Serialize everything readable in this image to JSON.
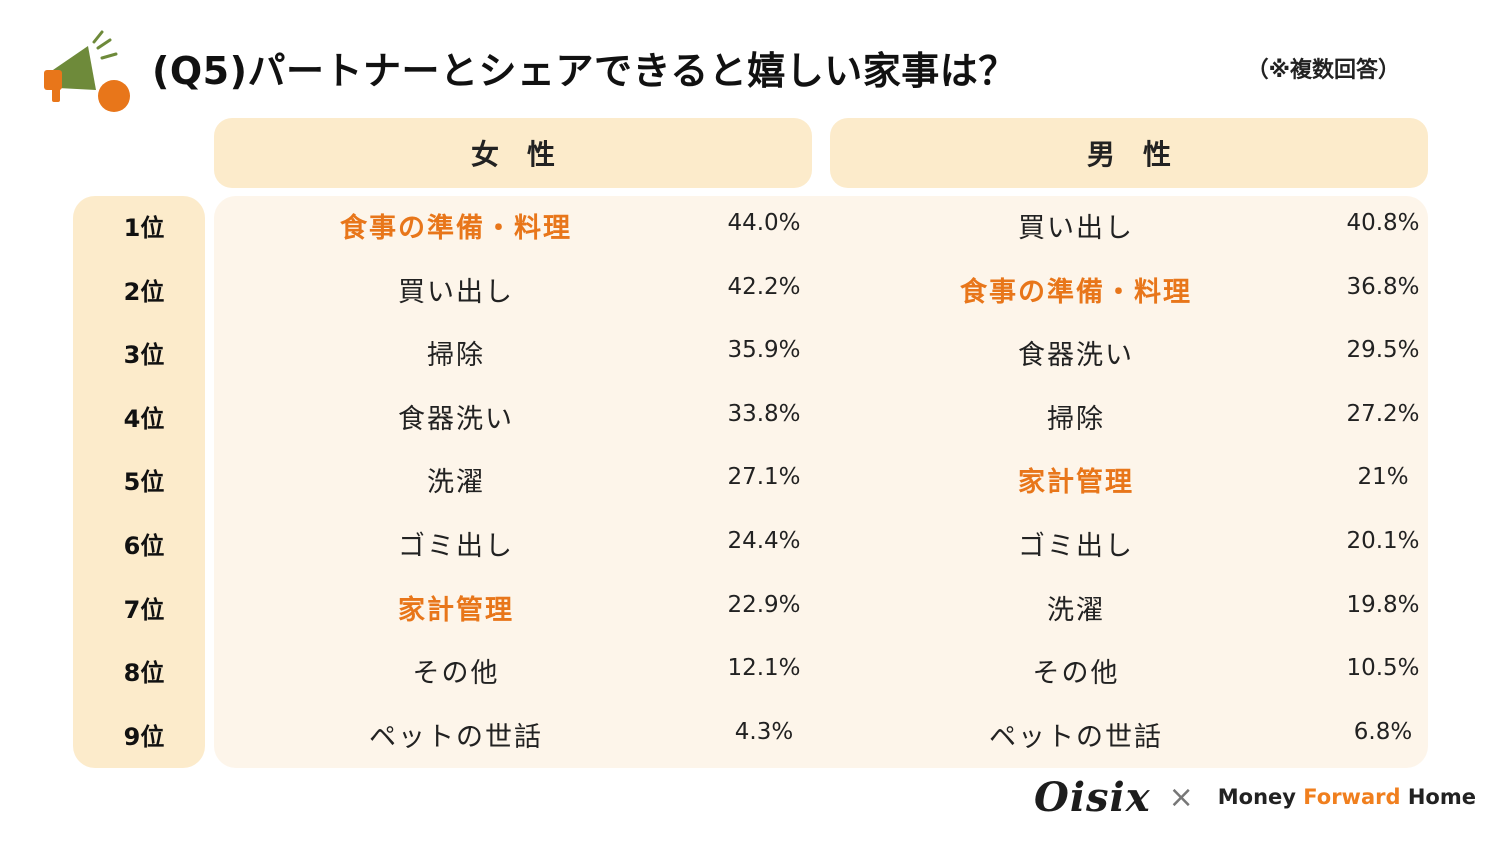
{
  "header": {
    "title": "(Q5)パートナーとシェアできると嬉しい家事は？",
    "note": "（※複数回答）"
  },
  "columns": {
    "female": "女性",
    "male": "男性"
  },
  "colors": {
    "highlight": "#e8761a",
    "header_bg": "#fcebcb",
    "panel_bg": "#fdf5ea"
  },
  "rows": [
    {
      "rank": "1位",
      "female": {
        "label": "食事の準備・料理",
        "pct": "44.0%"
      },
      "male": {
        "label": "買い出し",
        "pct": "40.8%"
      }
    },
    {
      "rank": "2位",
      "female": {
        "label": "買い出し",
        "pct": "42.2%"
      },
      "male": {
        "label": "食事の準備・料理",
        "pct": "36.8%"
      }
    },
    {
      "rank": "3位",
      "female": {
        "label": "掃除",
        "pct": "35.9%"
      },
      "male": {
        "label": "食器洗い",
        "pct": "29.5%"
      }
    },
    {
      "rank": "4位",
      "female": {
        "label": "食器洗い",
        "pct": "33.8%"
      },
      "male": {
        "label": "掃除",
        "pct": "27.2%"
      }
    },
    {
      "rank": "5位",
      "female": {
        "label": "洗濯",
        "pct": "27.1%"
      },
      "male": {
        "label": "家計管理",
        "pct": "21%"
      }
    },
    {
      "rank": "6位",
      "female": {
        "label": "ゴミ出し",
        "pct": "24.4%"
      },
      "male": {
        "label": "ゴミ出し",
        "pct": "20.1%"
      }
    },
    {
      "rank": "7位",
      "female": {
        "label": "家計管理",
        "pct": "22.9%"
      },
      "male": {
        "label": "洗濯",
        "pct": "19.8%"
      }
    },
    {
      "rank": "8位",
      "female": {
        "label": "その他",
        "pct": "12.1%"
      },
      "male": {
        "label": "その他",
        "pct": "10.5%"
      }
    },
    {
      "rank": "9位",
      "female": {
        "label": "ペットの世話",
        "pct": "4.3%"
      },
      "male": {
        "label": "ペットの世話",
        "pct": "6.8%"
      }
    }
  ],
  "highlighted_items": [
    "食事の準備・料理",
    "家計管理"
  ],
  "logos": {
    "oisix": "Oisix",
    "separator": "×",
    "money": "Money ",
    "forward": "Forward",
    "home": " Home"
  }
}
